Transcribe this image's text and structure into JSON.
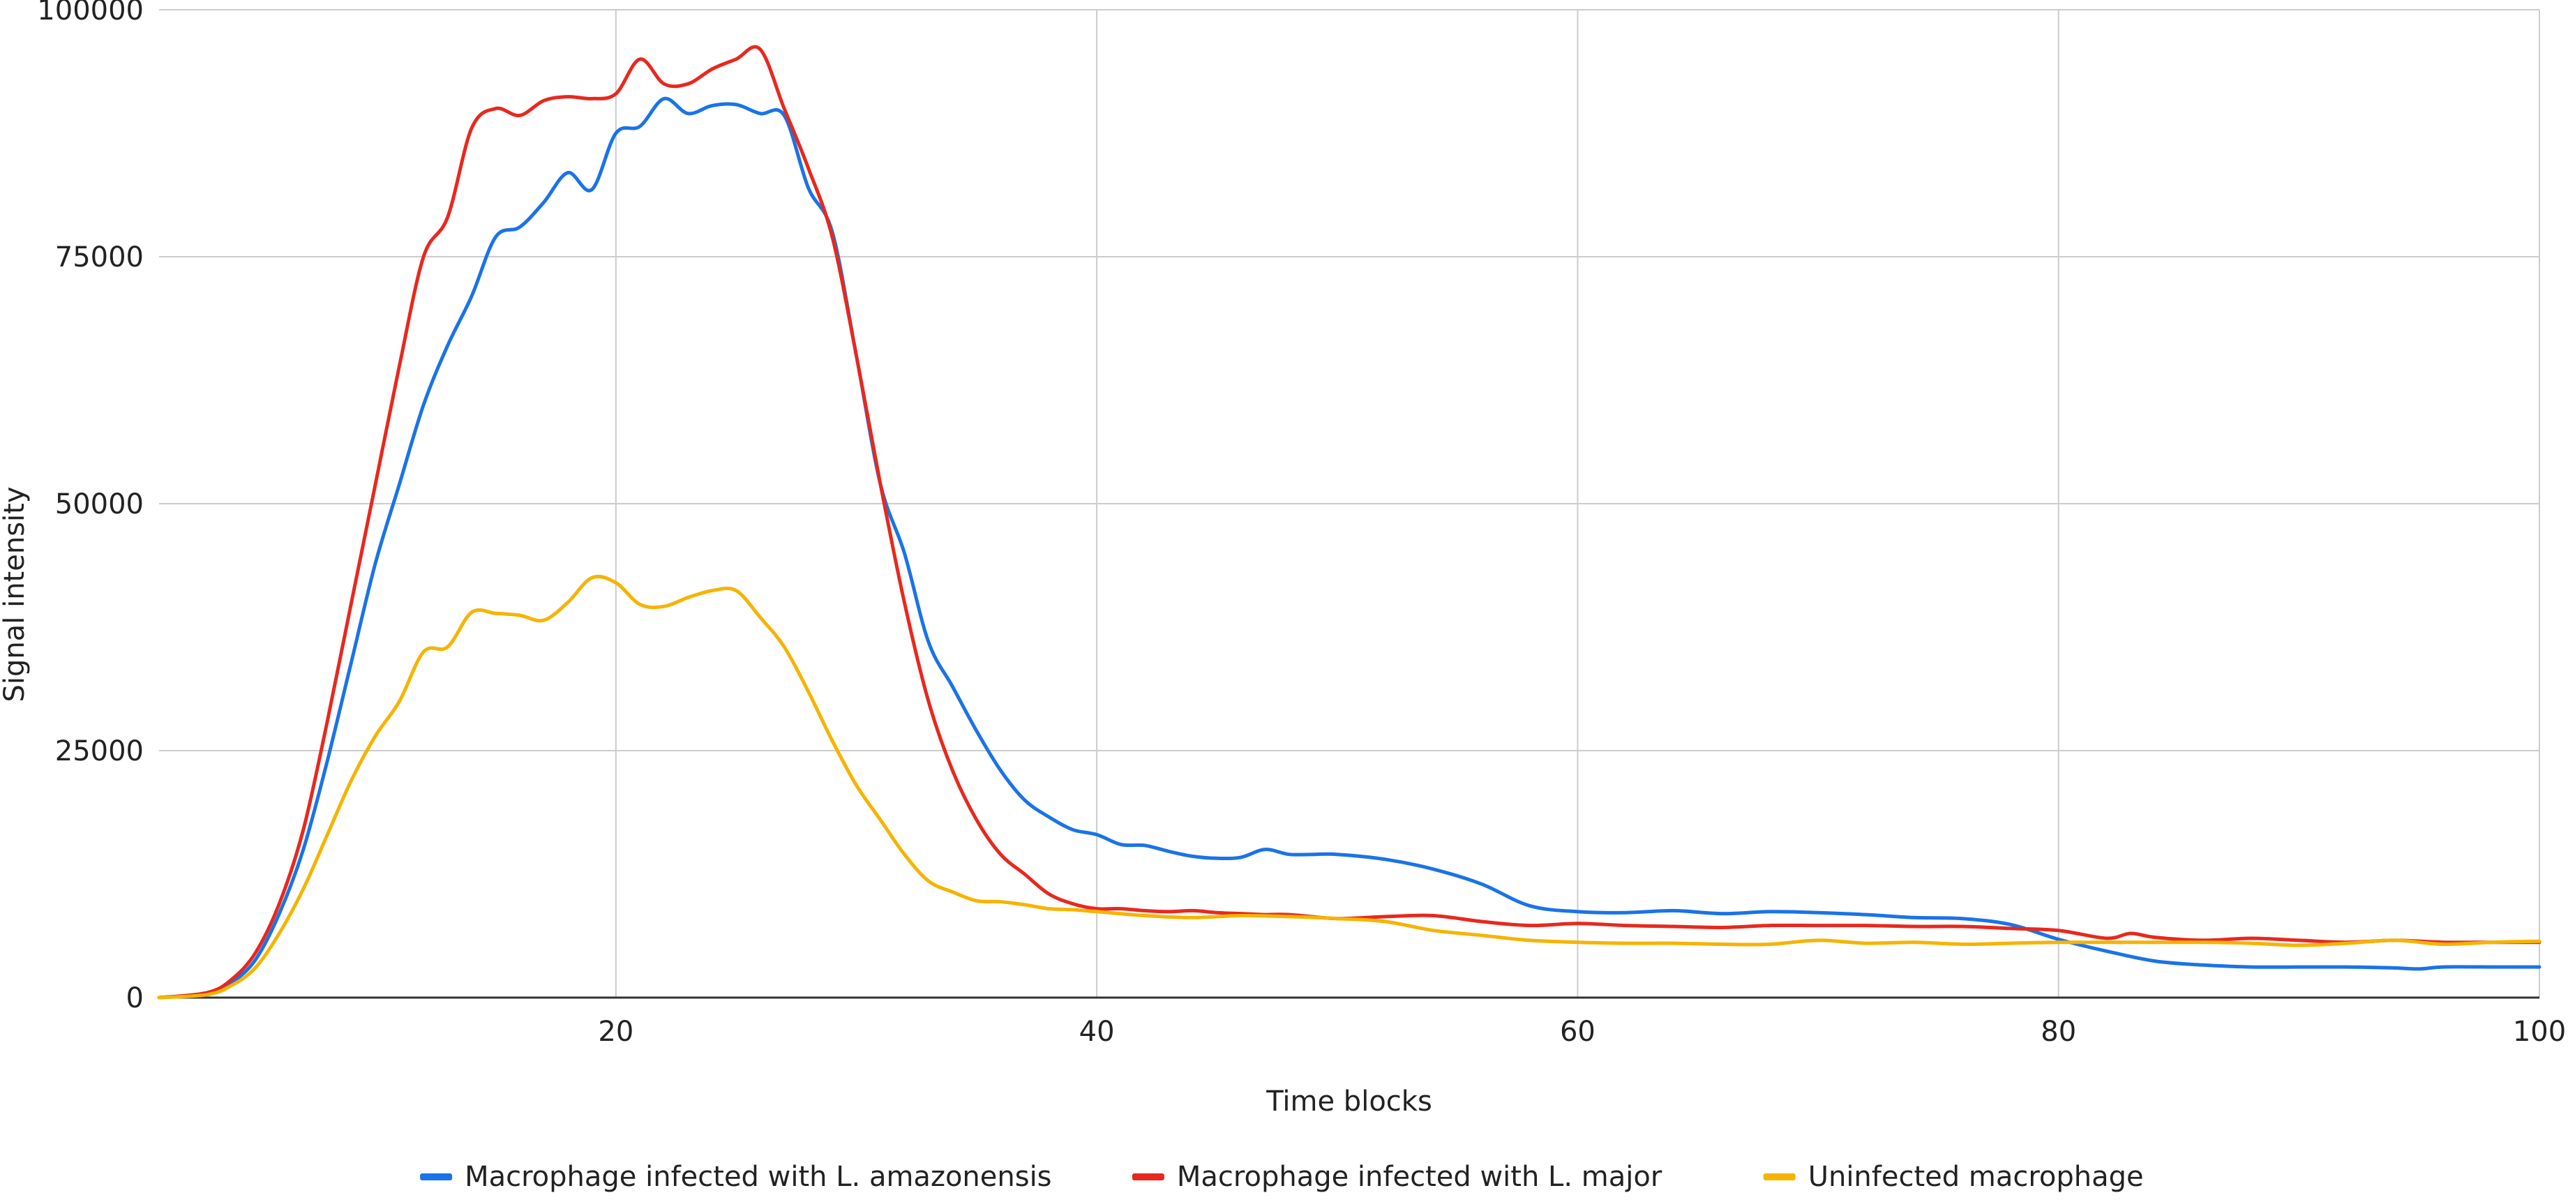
{
  "chart_data": {
    "type": "line",
    "title": "",
    "xlabel": "Time blocks",
    "ylabel": "Signal intensity",
    "xlim": [
      1,
      100
    ],
    "ylim": [
      0,
      100000
    ],
    "x_ticks": [
      20,
      40,
      60,
      80,
      100
    ],
    "y_ticks": [
      0,
      25000,
      50000,
      75000,
      100000
    ],
    "grid": true,
    "legend_position": "bottom",
    "series": [
      {
        "name": "Macrophage infected with L. amazonensis",
        "color": "#1a73e8",
        "x": [
          1,
          3,
          4,
          5,
          6,
          7,
          8,
          9,
          10,
          11,
          12,
          13,
          14,
          15,
          16,
          17,
          18,
          19,
          20,
          21,
          22,
          23,
          24,
          25,
          26,
          27,
          28,
          29,
          30,
          31,
          32,
          33,
          34,
          35,
          36,
          37,
          38,
          39,
          40,
          41,
          42,
          43,
          44,
          45,
          46,
          47,
          48,
          49,
          50,
          52,
          54,
          56,
          58,
          60,
          62,
          64,
          66,
          68,
          70,
          72,
          74,
          76,
          78,
          80,
          82,
          84,
          86,
          88,
          90,
          92,
          94,
          95,
          96,
          98,
          100
        ],
        "values": [
          0,
          400,
          1500,
          3800,
          8500,
          15000,
          24000,
          34000,
          44000,
          52000,
          60000,
          66000,
          71000,
          77000,
          78000,
          80500,
          83500,
          81800,
          87500,
          88200,
          91000,
          89500,
          90300,
          90400,
          89500,
          89300,
          82000,
          77500,
          65000,
          52000,
          45000,
          36000,
          31500,
          27000,
          23000,
          20000,
          18300,
          17000,
          16500,
          15500,
          15400,
          14800,
          14300,
          14100,
          14200,
          15000,
          14500,
          14500,
          14500,
          14000,
          13000,
          11500,
          9300,
          8700,
          8600,
          8800,
          8500,
          8700,
          8600,
          8400,
          8100,
          8000,
          7400,
          5900,
          4700,
          3700,
          3300,
          3100,
          3100,
          3100,
          3000,
          2900,
          3100,
          3100,
          3100
        ]
      },
      {
        "name": "Macrophage infected with  L. major",
        "color": "#e8281e",
        "x": [
          1,
          3,
          4,
          5,
          6,
          7,
          8,
          9,
          10,
          11,
          12,
          13,
          14,
          15,
          16,
          17,
          18,
          19,
          20,
          21,
          22,
          23,
          24,
          25,
          26,
          27,
          28,
          29,
          30,
          31,
          32,
          33,
          34,
          35,
          36,
          37,
          38,
          39,
          40,
          41,
          42,
          43,
          44,
          45,
          46,
          47,
          48,
          50,
          52,
          54,
          56,
          58,
          60,
          62,
          64,
          66,
          68,
          70,
          72,
          74,
          76,
          78,
          80,
          82,
          83,
          84,
          86,
          88,
          90,
          92,
          94,
          96,
          98,
          100
        ],
        "values": [
          0,
          500,
          1800,
          4500,
          9500,
          17000,
          28000,
          40000,
          52000,
          64000,
          75000,
          79000,
          88000,
          90000,
          89300,
          90800,
          91200,
          91000,
          91500,
          95000,
          92500,
          92500,
          94000,
          95000,
          96000,
          90000,
          84000,
          77000,
          65000,
          52000,
          40000,
          30000,
          23000,
          18000,
          14500,
          12500,
          10500,
          9500,
          9000,
          9000,
          8800,
          8700,
          8800,
          8600,
          8500,
          8400,
          8400,
          8000,
          8200,
          8300,
          7700,
          7300,
          7500,
          7300,
          7200,
          7100,
          7300,
          7300,
          7300,
          7200,
          7200,
          7000,
          6800,
          6000,
          6500,
          6100,
          5800,
          6000,
          5800,
          5600,
          5800,
          5600,
          5600,
          5600
        ]
      },
      {
        "name": "Uninfected macrophage",
        "color": "#f5b400",
        "x": [
          1,
          3,
          4,
          5,
          6,
          7,
          8,
          9,
          10,
          11,
          12,
          13,
          14,
          15,
          16,
          17,
          18,
          19,
          20,
          21,
          22,
          23,
          24,
          25,
          26,
          27,
          28,
          29,
          30,
          31,
          32,
          33,
          34,
          35,
          36,
          37,
          38,
          39,
          40,
          42,
          44,
          46,
          48,
          50,
          52,
          54,
          56,
          58,
          60,
          62,
          64,
          66,
          68,
          70,
          72,
          74,
          76,
          78,
          80,
          82,
          84,
          86,
          88,
          90,
          92,
          94,
          96,
          98,
          100
        ],
        "values": [
          0,
          300,
          1200,
          3000,
          6500,
          11000,
          16500,
          22000,
          26500,
          30000,
          35000,
          35500,
          39000,
          38900,
          38700,
          38200,
          40000,
          42500,
          42000,
          39800,
          39600,
          40500,
          41200,
          41200,
          38500,
          35500,
          31000,
          26000,
          21500,
          18000,
          14500,
          11800,
          10700,
          9800,
          9700,
          9400,
          9000,
          8900,
          8700,
          8300,
          8100,
          8300,
          8200,
          8000,
          7700,
          6800,
          6300,
          5800,
          5600,
          5500,
          5500,
          5400,
          5400,
          5800,
          5500,
          5600,
          5400,
          5500,
          5600,
          5600,
          5600,
          5600,
          5500,
          5300,
          5500,
          5800,
          5400,
          5600,
          5700
        ]
      }
    ]
  }
}
